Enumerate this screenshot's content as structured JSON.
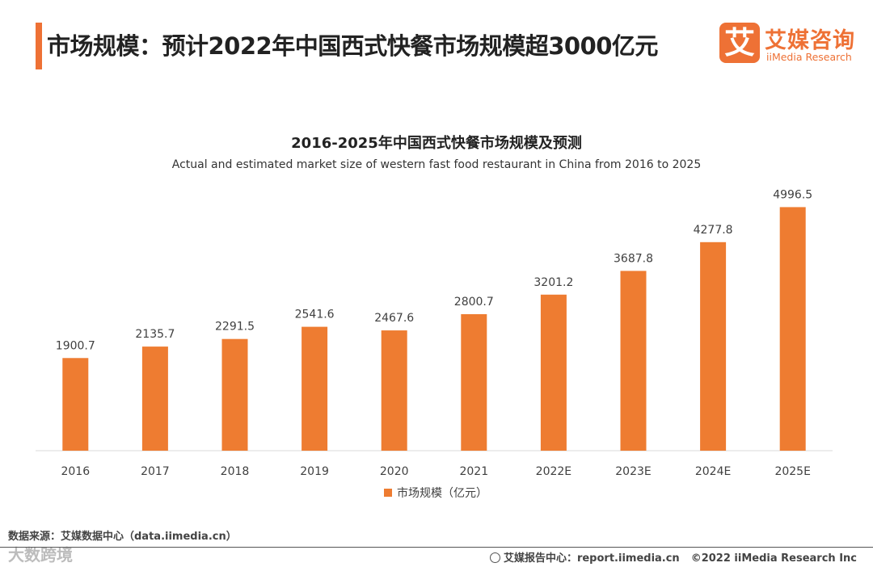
{
  "header": {
    "title": "市场规模：预计2022年中国西式快餐市场规模超3000亿元",
    "accent_color": "#ee7135"
  },
  "logo": {
    "mark": "艾",
    "cn": "艾媒咨询",
    "en": "iiMedia Research"
  },
  "chart_data": {
    "type": "bar",
    "title": "2016-2025年中国西式快餐市场规模及预测",
    "subtitle": "Actual and estimated market size of western fast food restaurant in China from 2016 to 2025",
    "categories": [
      "2016",
      "2017",
      "2018",
      "2019",
      "2020",
      "2021",
      "2022E",
      "2023E",
      "2024E",
      "2025E"
    ],
    "series": [
      {
        "name": "市场规模（亿元）",
        "color": "#ee7c31",
        "values": [
          1900.7,
          2135.7,
          2291.5,
          2541.6,
          2467.6,
          2800.7,
          3201.2,
          3687.8,
          4277.8,
          4996.5
        ]
      }
    ],
    "xlabel": "",
    "ylabel": "",
    "ylim": [
      0,
      5600
    ],
    "grid": false,
    "legend": "bottom-center"
  },
  "footer": {
    "source": "数据来源：艾媒数据中心（data.iimedia.cn）",
    "watermark": "大数跨境",
    "report_center": "艾媒报告中心：report.iimedia.cn",
    "copyright": "©2022  iiMedia Research Inc"
  }
}
